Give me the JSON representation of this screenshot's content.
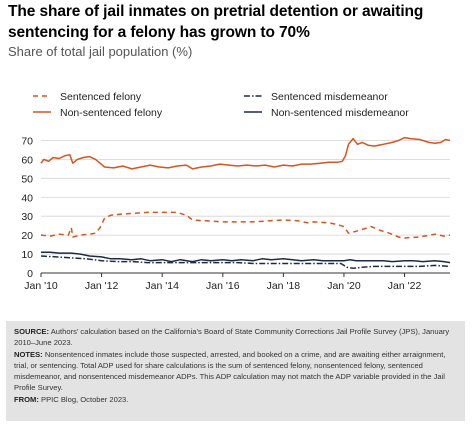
{
  "title": "The share of jail inmates on pretrial detention or awaiting sentencing for a felony has grown to 70%",
  "subtitle": "Share of total jail population (%)",
  "colors": {
    "felony": "#d9541e",
    "misdemeanor": "#1f2a44",
    "grid": "#d3d3d3",
    "footer_bg": "#e3e3e3"
  },
  "footer": {
    "source_label": "SOURCE:",
    "source_text": "Authors’ calculation based on the California’s Board of State Community Corrections Jail Profile Survey (JPS), January 2010–June 2023.",
    "notes_label": "NOTES:",
    "notes_text": "Nonsentenced inmates include those suspected, arrested, and booked on a crime, and are awaiting either arraignment, trial, or sentencing. Total ADP used for share calculations is the sum of sentenced felony, nonsentenced felony, sentenced misdemeanor, and nonsentenced misdemeanor ADPs. This ADP calculation may not match the ADP variable provided in the Jail Profile Survey.",
    "from_label": "FROM:",
    "from_text": "PPIC Blog, October 2023."
  },
  "chart_data": {
    "type": "line",
    "x_unit": "year",
    "xlim": [
      2010.0,
      2023.5
    ],
    "ylim": [
      0,
      75
    ],
    "yticks": [
      0,
      10,
      20,
      30,
      40,
      50,
      60,
      70
    ],
    "xticks": [
      {
        "value": 2010,
        "label": "Jan '10"
      },
      {
        "value": 2012,
        "label": "Jan '12"
      },
      {
        "value": 2014,
        "label": "Jan '14"
      },
      {
        "value": 2016,
        "label": "Jan '16"
      },
      {
        "value": 2018,
        "label": "Jan '18"
      },
      {
        "value": 2020,
        "label": "Jan '20"
      },
      {
        "value": 2022,
        "label": "Jan '22"
      }
    ],
    "grid": true,
    "legend_position": "top",
    "series": [
      {
        "name": "Sentenced felony",
        "color": "#d9541e",
        "dash": "5,4",
        "points": [
          [
            2010.0,
            20
          ],
          [
            2010.3,
            19.5
          ],
          [
            2010.6,
            20.5
          ],
          [
            2010.9,
            20
          ],
          [
            2011.0,
            24
          ],
          [
            2011.05,
            19
          ],
          [
            2011.3,
            20
          ],
          [
            2011.6,
            20.5
          ],
          [
            2011.8,
            21
          ],
          [
            2011.95,
            24
          ],
          [
            2012.1,
            29
          ],
          [
            2012.3,
            30.5
          ],
          [
            2012.6,
            31
          ],
          [
            2013.0,
            31.5
          ],
          [
            2013.5,
            32
          ],
          [
            2014.0,
            32
          ],
          [
            2014.5,
            32
          ],
          [
            2014.8,
            30.5
          ],
          [
            2015.0,
            28
          ],
          [
            2015.5,
            27.5
          ],
          [
            2016.0,
            27
          ],
          [
            2016.5,
            27
          ],
          [
            2017.0,
            27
          ],
          [
            2017.5,
            27.5
          ],
          [
            2018.0,
            28
          ],
          [
            2018.5,
            27.5
          ],
          [
            2018.8,
            26.5
          ],
          [
            2019.0,
            27
          ],
          [
            2019.5,
            26.5
          ],
          [
            2019.8,
            25.5
          ],
          [
            2020.0,
            24.5
          ],
          [
            2020.15,
            21
          ],
          [
            2020.4,
            22
          ],
          [
            2020.7,
            23.5
          ],
          [
            2020.9,
            24.5
          ],
          [
            2021.2,
            22.5
          ],
          [
            2021.5,
            21
          ],
          [
            2021.8,
            19
          ],
          [
            2022.0,
            18.5
          ],
          [
            2022.5,
            19
          ],
          [
            2023.0,
            20.5
          ],
          [
            2023.3,
            19.5
          ],
          [
            2023.5,
            20
          ]
        ]
      },
      {
        "name": "Sentenced misdemeanor",
        "color": "#1f2a44",
        "dash": "6,2,1.5,2",
        "points": [
          [
            2010.0,
            9
          ],
          [
            2010.5,
            8.5
          ],
          [
            2011.0,
            8
          ],
          [
            2011.5,
            7.5
          ],
          [
            2012.0,
            6.5
          ],
          [
            2012.5,
            6
          ],
          [
            2013.0,
            6
          ],
          [
            2013.5,
            5.5
          ],
          [
            2014.0,
            5.5
          ],
          [
            2014.5,
            5.5
          ],
          [
            2015.0,
            5.5
          ],
          [
            2015.5,
            5.5
          ],
          [
            2016.0,
            5.5
          ],
          [
            2016.5,
            5.5
          ],
          [
            2017.0,
            5
          ],
          [
            2017.5,
            5
          ],
          [
            2018.0,
            5
          ],
          [
            2018.5,
            5
          ],
          [
            2019.0,
            5
          ],
          [
            2019.5,
            5
          ],
          [
            2019.9,
            5
          ],
          [
            2020.1,
            3
          ],
          [
            2020.3,
            2.5
          ],
          [
            2020.6,
            3
          ],
          [
            2021.0,
            3.5
          ],
          [
            2021.5,
            3.5
          ],
          [
            2022.0,
            3.5
          ],
          [
            2022.5,
            3.5
          ],
          [
            2023.0,
            4
          ],
          [
            2023.5,
            3.5
          ]
        ]
      },
      {
        "name": "Non-sentenced felony",
        "color": "#d9541e",
        "dash": "",
        "points": [
          [
            2010.0,
            58
          ],
          [
            2010.1,
            60
          ],
          [
            2010.25,
            59
          ],
          [
            2010.4,
            61
          ],
          [
            2010.6,
            60.5
          ],
          [
            2010.8,
            62
          ],
          [
            2010.95,
            62.5
          ],
          [
            2011.05,
            58
          ],
          [
            2011.2,
            60
          ],
          [
            2011.4,
            61
          ],
          [
            2011.6,
            61.5
          ],
          [
            2011.8,
            60
          ],
          [
            2011.95,
            58
          ],
          [
            2012.1,
            56
          ],
          [
            2012.4,
            55.5
          ],
          [
            2012.7,
            56.5
          ],
          [
            2013.0,
            55
          ],
          [
            2013.3,
            56
          ],
          [
            2013.6,
            57
          ],
          [
            2013.9,
            56
          ],
          [
            2014.2,
            55.5
          ],
          [
            2014.5,
            56.5
          ],
          [
            2014.8,
            57
          ],
          [
            2015.0,
            55
          ],
          [
            2015.3,
            56
          ],
          [
            2015.6,
            56.5
          ],
          [
            2015.9,
            57.5
          ],
          [
            2016.2,
            57
          ],
          [
            2016.5,
            56.5
          ],
          [
            2016.8,
            57
          ],
          [
            2017.1,
            56.5
          ],
          [
            2017.4,
            57
          ],
          [
            2017.7,
            56
          ],
          [
            2018.0,
            57
          ],
          [
            2018.3,
            56.5
          ],
          [
            2018.6,
            57.5
          ],
          [
            2018.9,
            57.5
          ],
          [
            2019.2,
            58
          ],
          [
            2019.5,
            58.5
          ],
          [
            2019.8,
            58.5
          ],
          [
            2019.95,
            59
          ],
          [
            2020.05,
            62
          ],
          [
            2020.15,
            68
          ],
          [
            2020.3,
            71
          ],
          [
            2020.45,
            68
          ],
          [
            2020.6,
            69
          ],
          [
            2020.8,
            67.5
          ],
          [
            2021.0,
            67
          ],
          [
            2021.3,
            68
          ],
          [
            2021.6,
            69
          ],
          [
            2021.8,
            70
          ],
          [
            2022.0,
            71.5
          ],
          [
            2022.2,
            71
          ],
          [
            2022.5,
            70.5
          ],
          [
            2022.8,
            69
          ],
          [
            2023.0,
            68.5
          ],
          [
            2023.2,
            69
          ],
          [
            2023.35,
            70.5
          ],
          [
            2023.5,
            70
          ]
        ]
      },
      {
        "name": "Non-sentenced misdemeanor",
        "color": "#1f2a44",
        "dash": "",
        "points": [
          [
            2010.0,
            11
          ],
          [
            2010.3,
            11
          ],
          [
            2010.6,
            10.5
          ],
          [
            2011.0,
            10.5
          ],
          [
            2011.3,
            10
          ],
          [
            2011.6,
            9
          ],
          [
            2012.0,
            8.5
          ],
          [
            2012.3,
            7.5
          ],
          [
            2012.6,
            7.5
          ],
          [
            2013.0,
            7
          ],
          [
            2013.3,
            7.5
          ],
          [
            2013.6,
            6.5
          ],
          [
            2014.0,
            7
          ],
          [
            2014.3,
            6
          ],
          [
            2014.6,
            7
          ],
          [
            2015.0,
            6
          ],
          [
            2015.3,
            7
          ],
          [
            2015.6,
            6.5
          ],
          [
            2016.0,
            7
          ],
          [
            2016.3,
            6.5
          ],
          [
            2016.6,
            7
          ],
          [
            2017.0,
            6.5
          ],
          [
            2017.3,
            7.5
          ],
          [
            2017.6,
            7
          ],
          [
            2018.0,
            7.5
          ],
          [
            2018.3,
            7
          ],
          [
            2018.6,
            6.5
          ],
          [
            2019.0,
            7
          ],
          [
            2019.3,
            6.5
          ],
          [
            2019.6,
            6.5
          ],
          [
            2020.0,
            6.5
          ],
          [
            2020.2,
            7
          ],
          [
            2020.4,
            6.5
          ],
          [
            2020.7,
            6.5
          ],
          [
            2021.0,
            6.5
          ],
          [
            2021.3,
            6.5
          ],
          [
            2021.6,
            6
          ],
          [
            2022.0,
            6.5
          ],
          [
            2022.3,
            6.5
          ],
          [
            2022.6,
            6
          ],
          [
            2023.0,
            6.5
          ],
          [
            2023.3,
            6
          ],
          [
            2023.5,
            5.5
          ]
        ]
      }
    ]
  }
}
